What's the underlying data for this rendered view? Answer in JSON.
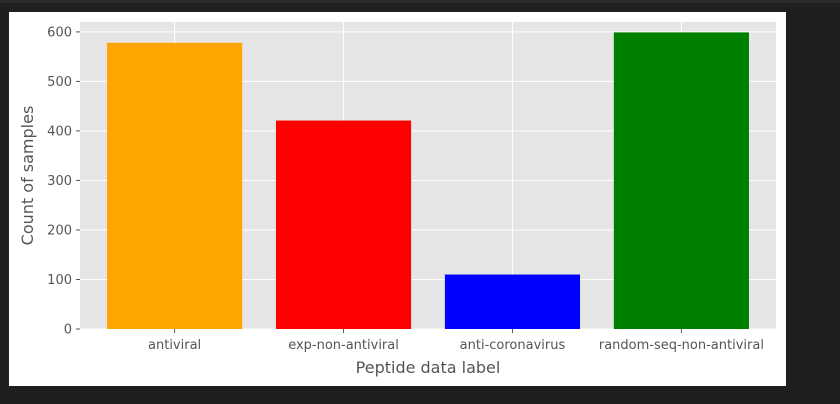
{
  "chart_data": {
    "type": "bar",
    "title": "",
    "xlabel": "Peptide data label",
    "ylabel": "Count of samples",
    "categories": [
      "antiviral",
      "exp-non-antiviral",
      "anti-coronavirus",
      "random-seq-non-antiviral"
    ],
    "values": [
      578,
      421,
      110,
      599
    ],
    "colors": [
      "#ffa500",
      "#ff0000",
      "#0000ff",
      "#008000"
    ],
    "ylim": [
      0,
      620
    ],
    "yticks": [
      0,
      100,
      200,
      300,
      400,
      500,
      600
    ],
    "grid": true,
    "plot_background": "#e5e5e5",
    "grid_color": "#ffffff",
    "tick_color": "#555555"
  }
}
